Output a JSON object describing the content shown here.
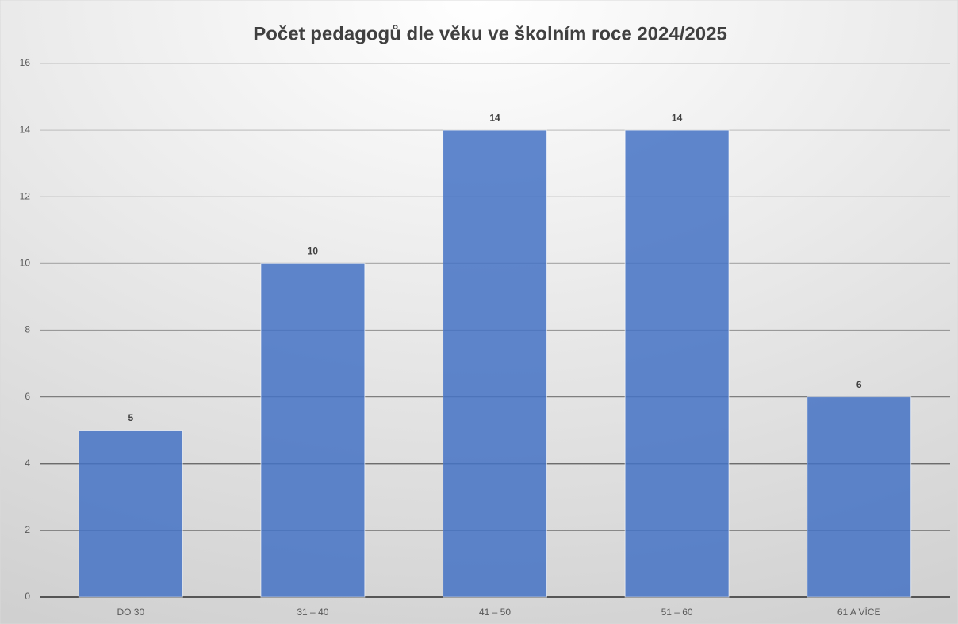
{
  "chart_data": {
    "type": "bar",
    "title": "Počet pedagogů dle věku ve školním roce 2024/2025",
    "categories": [
      "DO 30",
      "31 – 40",
      "41 – 50",
      "51 – 60",
      "61 A VÍCE"
    ],
    "values": [
      5,
      10,
      14,
      14,
      6
    ],
    "color": "#4472c4",
    "ylim": [
      0,
      16
    ],
    "yticks": [
      0,
      2,
      4,
      6,
      8,
      10,
      12,
      14,
      16
    ],
    "grid": true,
    "data_labels": true
  }
}
